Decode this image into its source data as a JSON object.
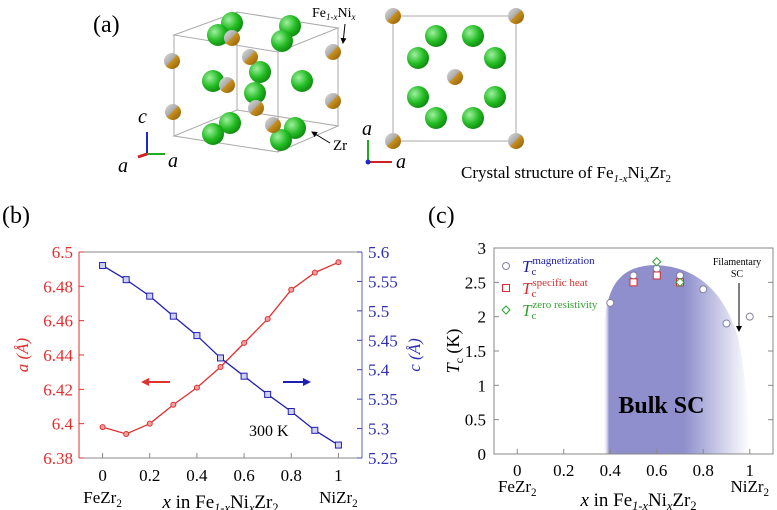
{
  "panel_a": {
    "label": "(a)",
    "site_label_fe": "Fe",
    "site_label_fe_sub": "1-x",
    "site_label_ni": "Ni",
    "site_label_ni_sub": "x",
    "zr_label": "Zr",
    "axis_c": "c",
    "axis_a": "a",
    "caption": "Crystal structure of Fe",
    "caption_sub1": "1-x",
    "caption_ni": "Ni",
    "caption_sub2": "x",
    "caption_zr": "Zr",
    "caption_sub3": "2",
    "colors": {
      "zr": "#22bb22",
      "fe_ni": "#b8860b",
      "cell": "#aaaaaa"
    }
  },
  "chart_data": [
    {
      "panel_label": "(b)",
      "type": "line",
      "xlabel": "x in Fe1-xNixZr2",
      "x": [
        0,
        0.1,
        0.2,
        0.3,
        0.4,
        0.5,
        0.6,
        0.7,
        0.8,
        0.9,
        1
      ],
      "x_ticks": [
        "0",
        "0.2",
        "0.4",
        "0.6",
        "0.8",
        "1"
      ],
      "x_end_labels": [
        "FeZr2",
        "NiZr2"
      ],
      "xlim": [
        -0.1,
        1.1
      ],
      "series": [
        {
          "name": "a (Å)",
          "axis": "left",
          "color": "#e03030",
          "marker": "circle",
          "values": [
            6.398,
            6.394,
            6.4,
            6.411,
            6.421,
            6.433,
            6.447,
            6.461,
            6.478,
            6.488,
            6.494
          ]
        },
        {
          "name": "c (Å)",
          "axis": "right",
          "color": "#2020b0",
          "marker": "square",
          "values": [
            5.577,
            5.553,
            5.525,
            5.491,
            5.458,
            5.42,
            5.389,
            5.358,
            5.329,
            5.297,
            5.272
          ]
        }
      ],
      "y_left": {
        "label": "a (Å)",
        "lim": [
          6.38,
          6.5
        ],
        "ticks": [
          "6.38",
          "6.4",
          "6.42",
          "6.44",
          "6.46",
          "6.48",
          "6.5"
        ]
      },
      "y_right": {
        "label": "c (Å)",
        "lim": [
          5.25,
          5.6
        ],
        "ticks": [
          "5.25",
          "5.3",
          "5.35",
          "5.4",
          "5.45",
          "5.5",
          "5.55",
          "5.6"
        ]
      },
      "annotation": "300 K"
    },
    {
      "panel_label": "(c)",
      "type": "scatter",
      "xlabel": "x in Fe1-xNixZr2",
      "ylabel": "Tc (K)",
      "xlim": [
        -0.1,
        1.1
      ],
      "ylim": [
        0,
        3
      ],
      "x_ticks": [
        "0",
        "0.2",
        "0.4",
        "0.6",
        "0.8",
        "1"
      ],
      "y_ticks": [
        "0",
        "0.5",
        "1",
        "1.5",
        "2",
        "2.5",
        "3"
      ],
      "x_end_labels": [
        "FeZr2",
        "NiZr2"
      ],
      "series": [
        {
          "name": "Tc magnetization",
          "sup": "magnetization",
          "color": "#2020a0",
          "marker": "circle",
          "x": [
            0.4,
            0.5,
            0.6,
            0.7,
            0.8,
            0.9,
            1.0
          ],
          "y": [
            2.2,
            2.6,
            2.7,
            2.6,
            2.4,
            1.9,
            2.0
          ]
        },
        {
          "name": "Tc specific heat",
          "sup": "specific heat",
          "color": "#d03030",
          "marker": "square",
          "x": [
            0.5,
            0.6,
            0.7
          ],
          "y": [
            2.5,
            2.6,
            2.5
          ]
        },
        {
          "name": "Tc zero resistivity",
          "sup": "zero resistivity",
          "color": "#30a030",
          "marker": "diamond",
          "x": [
            0.6,
            0.7
          ],
          "y": [
            2.8,
            2.5
          ]
        }
      ],
      "legend_placement": "top-left",
      "region_label": "Bulk SC",
      "region_color": "#8e8fcc",
      "annotation_line1": "Filamentary",
      "annotation_line2": "SC"
    }
  ]
}
